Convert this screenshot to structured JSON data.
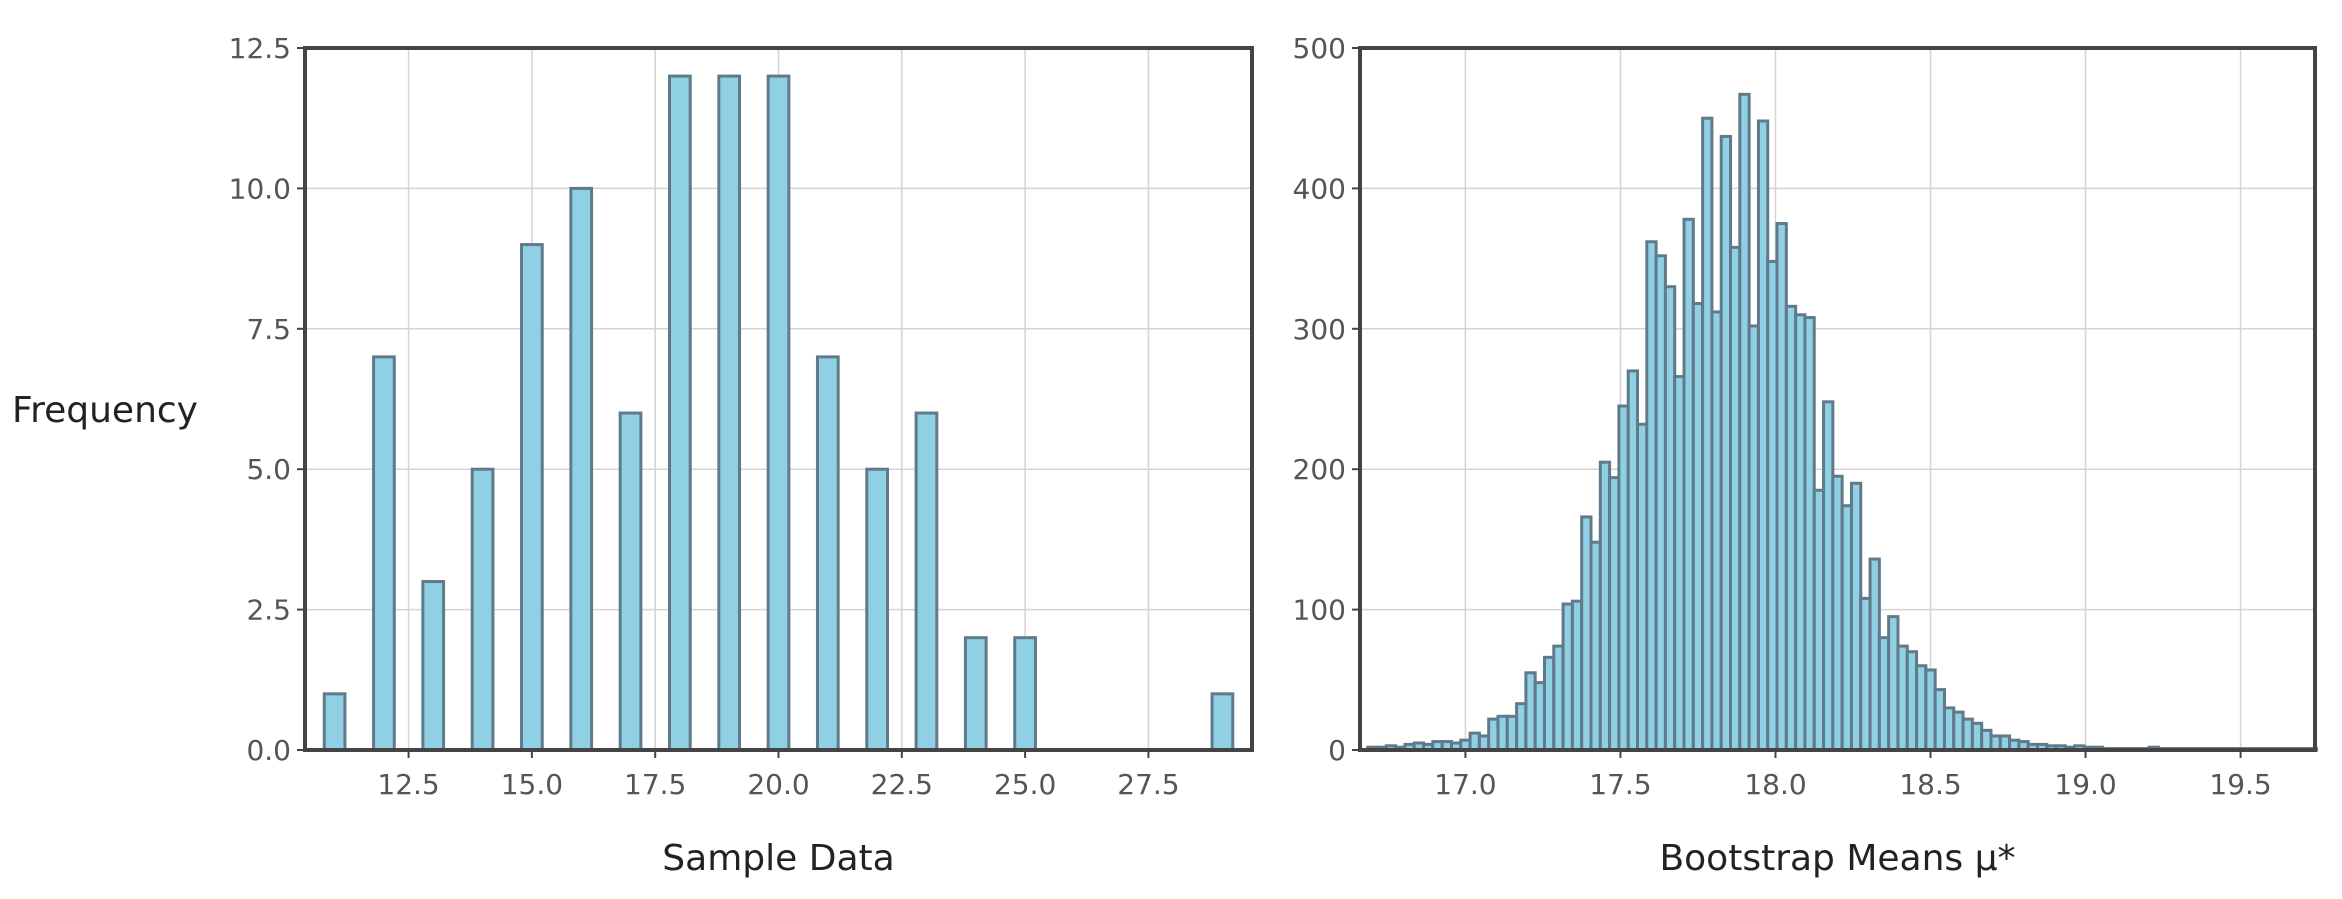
{
  "chart_data": [
    {
      "type": "bar",
      "title": "",
      "xlabel": "Sample Data",
      "ylabel": "Frequency",
      "xlim": [
        10.4,
        29.6
      ],
      "ylim": [
        0,
        12.5
      ],
      "xticks": [
        "12.5",
        "15.0",
        "17.5",
        "20.0",
        "22.5",
        "25.0",
        "27.5"
      ],
      "yticks": [
        "0.0",
        "2.5",
        "5.0",
        "7.5",
        "10.0",
        "12.5"
      ],
      "grid": true,
      "bar_color": "#8fd0e4",
      "edge_color": "#607a8a",
      "x": [
        11,
        12,
        13,
        14,
        15,
        16,
        17,
        18,
        19,
        20,
        21,
        22,
        23,
        24,
        25,
        26,
        27,
        28,
        29
      ],
      "values": [
        1,
        7,
        3,
        5,
        9,
        10,
        6,
        12,
        12,
        12,
        7,
        5,
        6,
        2,
        2,
        0,
        0,
        0,
        1
      ]
    },
    {
      "type": "bar",
      "title": "",
      "xlabel": "Bootstrap Means μ*",
      "ylabel": "",
      "xlim": [
        16.66,
        19.74
      ],
      "ylim": [
        0,
        500
      ],
      "xticks": [
        "17.0",
        "17.5",
        "18.0",
        "18.5",
        "19.0",
        "19.5"
      ],
      "yticks": [
        "0",
        "100",
        "200",
        "300",
        "400",
        "500"
      ],
      "grid": true,
      "bar_color": "#8fd0e4",
      "edge_color": "#607a8a",
      "x": [
        16.7,
        16.73,
        16.76,
        16.79,
        16.82,
        16.85,
        16.88,
        16.91,
        16.94,
        16.97,
        17.0,
        17.03,
        17.06,
        17.09,
        17.12,
        17.15,
        17.18,
        17.21,
        17.24,
        17.27,
        17.3,
        17.33,
        17.36,
        17.39,
        17.42,
        17.45,
        17.48,
        17.51,
        17.54,
        17.57,
        17.6,
        17.63,
        17.66,
        17.69,
        17.72,
        17.75,
        17.78,
        17.81,
        17.84,
        17.87,
        17.9,
        17.93,
        17.96,
        17.99,
        18.02,
        18.05,
        18.08,
        18.11,
        18.14,
        18.17,
        18.2,
        18.23,
        18.26,
        18.29,
        18.32,
        18.35,
        18.38,
        18.41,
        18.44,
        18.47,
        18.5,
        18.53,
        18.56,
        18.59,
        18.62,
        18.65,
        18.68,
        18.71,
        18.74,
        18.77,
        18.8,
        18.83,
        18.86,
        18.89,
        18.92,
        18.95,
        18.98,
        19.01,
        19.04,
        19.07,
        19.1,
        19.13,
        19.16,
        19.19,
        19.22,
        19.25,
        19.28,
        19.31,
        19.34,
        19.37,
        19.4,
        19.43,
        19.46,
        19.49,
        19.52,
        19.55,
        19.58,
        19.61,
        19.64,
        19.67,
        19.7,
        19.73
      ],
      "values": [
        2,
        2,
        3,
        2,
        4,
        5,
        4,
        6,
        6,
        5,
        7,
        12,
        10,
        22,
        24,
        24,
        33,
        55,
        48,
        66,
        74,
        104,
        106,
        166,
        148,
        205,
        194,
        245,
        270,
        232,
        362,
        352,
        330,
        266,
        378,
        318,
        450,
        312,
        437,
        358,
        467,
        302,
        448,
        348,
        375,
        316,
        310,
        308,
        185,
        248,
        195,
        174,
        190,
        108,
        136,
        80,
        95,
        74,
        70,
        60,
        57,
        43,
        30,
        27,
        22,
        19,
        14,
        10,
        10,
        7,
        6,
        4,
        4,
        3,
        3,
        2,
        3,
        2,
        2,
        1,
        1,
        1,
        1,
        1,
        2,
        1,
        1,
        1,
        1,
        1,
        1,
        1,
        1,
        1,
        1,
        1,
        1,
        1,
        1,
        1,
        1,
        1
      ]
    }
  ]
}
